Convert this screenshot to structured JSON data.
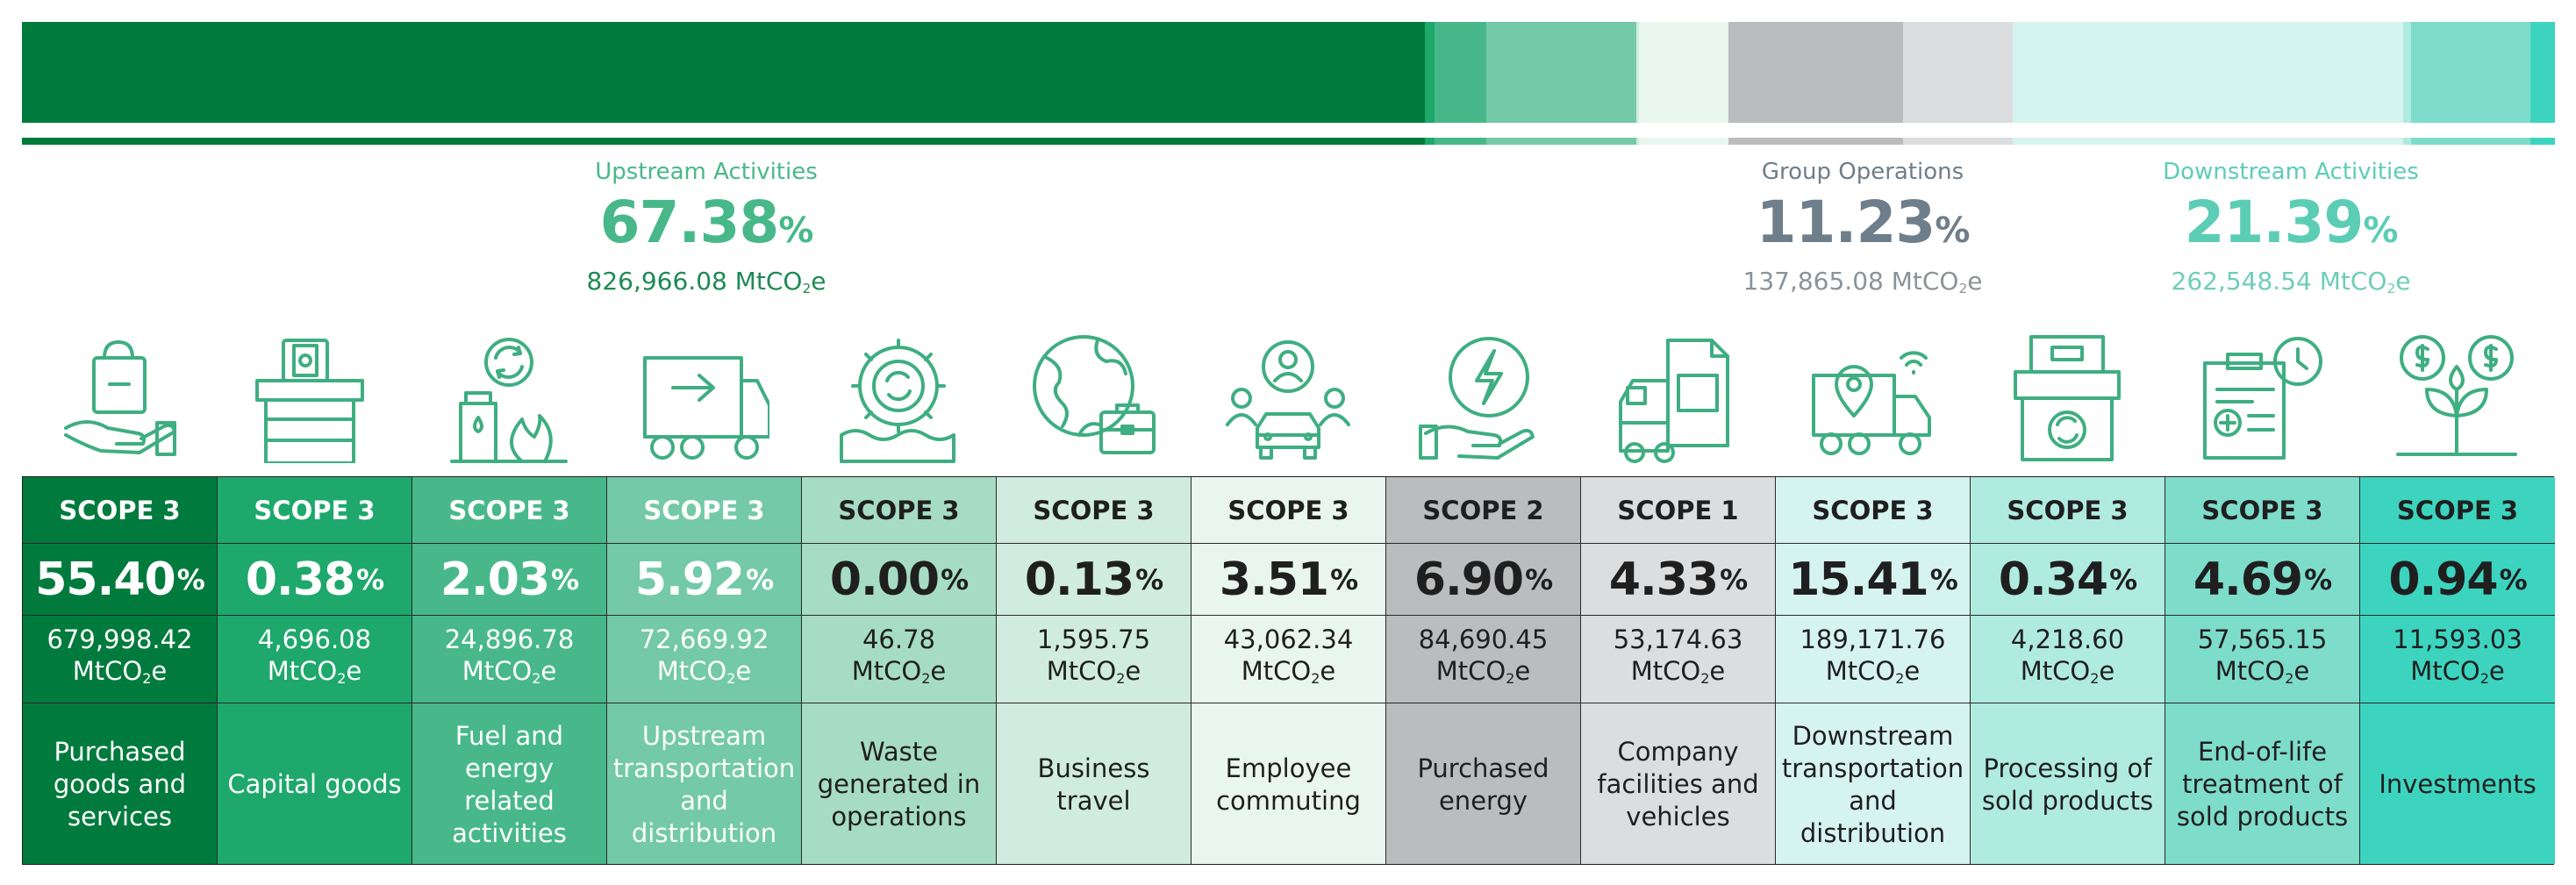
{
  "chart_data": {
    "type": "table",
    "bar_order": [
      "upstream_scope3",
      "group_operations",
      "downstream_scope3"
    ],
    "groups": [
      {
        "name": "Upstream Activities",
        "percent": "67.38",
        "percent_unit": "%",
        "emissions": "826,966.08 MtCO",
        "unit_sub": "2",
        "unit_tail": "e",
        "color": "#48b88a",
        "em_color": "#1e8a55"
      },
      {
        "name": "Group Operations",
        "percent": "11.23",
        "percent_unit": "%",
        "emissions": "137,865.08 MtCO",
        "unit_sub": "2",
        "unit_tail": "e",
        "color": "#6e7e8a",
        "em_color": "#8b9399"
      },
      {
        "name": "Downstream Activities",
        "percent": "21.39",
        "percent_unit": "%",
        "emissions": "262,548.54 MtCO",
        "unit_sub": "2",
        "unit_tail": "e",
        "color": "#5ccdb5",
        "em_color": "#6fcdb9"
      }
    ],
    "categories": [
      {
        "scope": "SCOPE 3",
        "pct": "55.40",
        "value": 55.4,
        "emissions": "679,998.42",
        "name": "Purchased goods and services",
        "group": "upstream",
        "bg": "#017b3d",
        "fg": "#ffffff"
      },
      {
        "scope": "SCOPE 3",
        "pct": "0.38",
        "value": 0.38,
        "emissions": "4,696.08",
        "name": "Capital goods",
        "group": "upstream",
        "bg": "#1ea86c",
        "fg": "#ffffff"
      },
      {
        "scope": "SCOPE 3",
        "pct": "2.03",
        "value": 2.03,
        "emissions": "24,896.78",
        "name": "Fuel and energy related activities",
        "group": "upstream",
        "bg": "#48b88a",
        "fg": "#ffffff"
      },
      {
        "scope": "SCOPE 3",
        "pct": "5.92",
        "value": 5.92,
        "emissions": "72,669.92",
        "name": "Upstream transportation and distribution",
        "group": "upstream",
        "bg": "#73c9a8",
        "fg": "#ffffff"
      },
      {
        "scope": "SCOPE 3",
        "pct": "0.00",
        "value": 0.0,
        "emissions": "46.78",
        "name": "Waste generated in operations",
        "group": "upstream",
        "bg": "#a6dcc4",
        "fg": "#1f1f1f"
      },
      {
        "scope": "SCOPE 3",
        "pct": "0.13",
        "value": 0.13,
        "emissions": "1,595.75",
        "name": "Business travel",
        "group": "upstream",
        "bg": "#d0ece0",
        "fg": "#1f1f1f"
      },
      {
        "scope": "SCOPE 3",
        "pct": "3.51",
        "value": 3.51,
        "emissions": "43,062.34",
        "name": "Employee commuting",
        "group": "upstream",
        "bg": "#e8f6ef",
        "fg": "#1f1f1f"
      },
      {
        "scope": "SCOPE 2",
        "pct": "6.90",
        "value": 6.9,
        "emissions": "84,690.45",
        "name": "Purchased energy",
        "group": "operations",
        "bg": "#bbbcbe",
        "fg": "#1f1f1f"
      },
      {
        "scope": "SCOPE 1",
        "pct": "4.33",
        "value": 4.33,
        "emissions": "53,174.63",
        "name": "Company facilities and vehicles",
        "group": "operations",
        "bg": "#dcdddf",
        "fg": "#1f1f1f"
      },
      {
        "scope": "SCOPE 3",
        "pct": "15.41",
        "value": 15.41,
        "emissions": "189,171.76",
        "name": "Downstream transportation and distribution",
        "group": "downstream",
        "bg": "#d6f4ef",
        "fg": "#1f1f1f"
      },
      {
        "scope": "SCOPE 3",
        "pct": "0.34",
        "value": 0.34,
        "emissions": "4,218.60",
        "name": "Processing of sold products",
        "group": "downstream",
        "bg": "#b0ebe0",
        "fg": "#1f1f1f"
      },
      {
        "scope": "SCOPE 3",
        "pct": "4.69",
        "value": 4.69,
        "emissions": "57,565.15",
        "name": "End-of-life treatment of sold products",
        "group": "downstream",
        "bg": "#7edccb",
        "fg": "#1f1f1f"
      },
      {
        "scope": "SCOPE 3",
        "pct": "0.94",
        "value": 0.94,
        "emissions": "11,593.03",
        "name": "Investments",
        "group": "downstream",
        "bg": "#3dd4bf",
        "fg": "#1f1f1f"
      }
    ],
    "pct_unit": "%",
    "em_unit_a": "MtCO",
    "em_unit_sub": "2",
    "em_unit_b": "e",
    "icons": [
      "hand-bag-icon",
      "money-box-icon",
      "fuel-cycle-icon",
      "delivery-truck-icon",
      "gear-recycle-icon",
      "globe-briefcase-icon",
      "commute-car-icon",
      "hand-energy-icon",
      "facility-truck-icon",
      "truck-location-icon",
      "box-recycle-icon",
      "clipboard-timer-icon",
      "money-plant-icon"
    ]
  }
}
